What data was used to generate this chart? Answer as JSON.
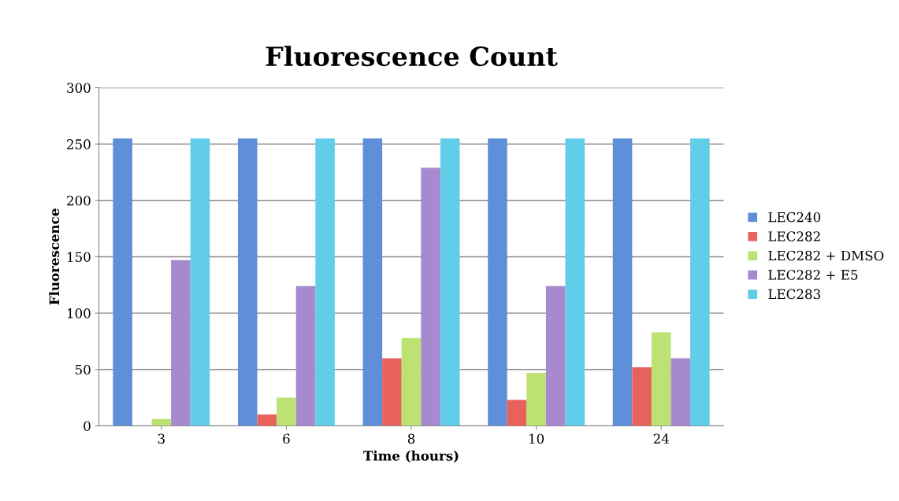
{
  "chart_data": {
    "type": "bar",
    "title": "Fluorescence Count",
    "xlabel": "Time (hours)",
    "ylabel": "Fluorescence",
    "categories": [
      "3",
      "6",
      "8",
      "10",
      "24"
    ],
    "series": [
      {
        "name": "LEC240",
        "color": "#5f8fd8",
        "values": [
          255,
          255,
          255,
          255,
          255
        ]
      },
      {
        "name": "LEC282",
        "color": "#e8625c",
        "values": [
          0,
          10,
          60,
          23,
          52
        ]
      },
      {
        "name": "LEC282 + DMSO",
        "color": "#bde274",
        "values": [
          6,
          25,
          78,
          47,
          83
        ]
      },
      {
        "name": "LEC282 + E5",
        "color": "#a68acd",
        "values": [
          147,
          124,
          229,
          124,
          60
        ]
      },
      {
        "name": "LEC283",
        "color": "#62cde8",
        "values": [
          255,
          255,
          255,
          255,
          255
        ]
      }
    ],
    "ylim": [
      0,
      300
    ],
    "yticks": [
      0,
      50,
      100,
      150,
      200,
      250,
      300
    ],
    "grid": "y",
    "legend": "right"
  }
}
